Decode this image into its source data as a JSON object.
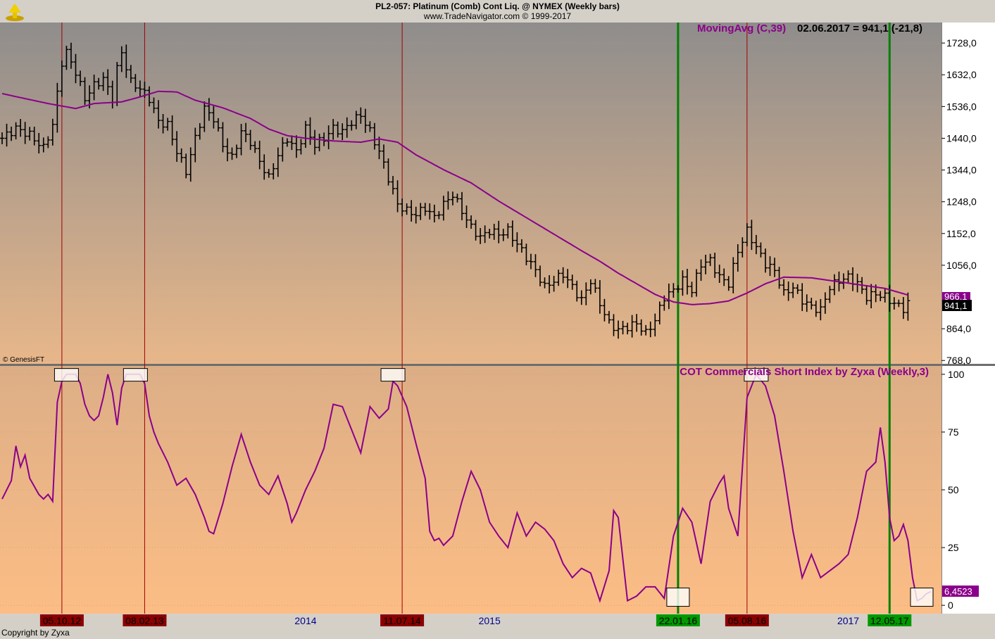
{
  "header": {
    "title": "PL2-057:  Platinum (Comb) Cont Liq. @ NYMEX  (Weekly bars)",
    "source": "www.TradeNavigator.com © 1999-2017"
  },
  "footer": {
    "copyright": "Copyright by Zyxa"
  },
  "watermark": "© GenesisFT",
  "colors": {
    "price_bar": "#000000",
    "moving_avg": "#8b008b",
    "cot_line": "#8b008b",
    "signal_red": "#a00000",
    "signal_green": "#008000"
  },
  "chart_data": [
    {
      "type": "ohlc",
      "panel": "price",
      "indicator_label": "MovingAvg (C,39)",
      "readout": "02.06.2017 = 941,1 (-21,8)",
      "y_ticks": [
        "1728,0",
        "1632,0",
        "1536,0",
        "1440,0",
        "1344,0",
        "1248,0",
        "1152,0",
        "1056,0",
        "864,0",
        "768,0"
      ],
      "y_tick_values": [
        1728,
        1632,
        1536,
        1440,
        1344,
        1248,
        1152,
        1056,
        864,
        768
      ],
      "ylim": [
        760,
        1790
      ],
      "last_price_label": "941,1",
      "ma_value_label": "966,1",
      "close_series": [
        [
          0,
          1440
        ],
        [
          3,
          1470
        ],
        [
          6,
          1450
        ],
        [
          9,
          1410
        ],
        [
          11,
          1480
        ],
        [
          13,
          1670
        ],
        [
          14,
          1700
        ],
        [
          16,
          1640
        ],
        [
          18,
          1560
        ],
        [
          20,
          1600
        ],
        [
          22,
          1620
        ],
        [
          24,
          1560
        ],
        [
          25,
          1650
        ],
        [
          26,
          1700
        ],
        [
          28,
          1610
        ],
        [
          30,
          1590
        ],
        [
          32,
          1560
        ],
        [
          34,
          1490
        ],
        [
          36,
          1480
        ],
        [
          38,
          1400
        ],
        [
          40,
          1340
        ],
        [
          42,
          1440
        ],
        [
          44,
          1530
        ],
        [
          46,
          1500
        ],
        [
          48,
          1420
        ],
        [
          50,
          1380
        ],
        [
          52,
          1460
        ],
        [
          54,
          1430
        ],
        [
          56,
          1370
        ],
        [
          58,
          1320
        ],
        [
          60,
          1390
        ],
        [
          62,
          1440
        ],
        [
          64,
          1400
        ],
        [
          66,
          1470
        ],
        [
          68,
          1420
        ],
        [
          70,
          1440
        ],
        [
          72,
          1470
        ],
        [
          74,
          1460
        ],
        [
          76,
          1490
        ],
        [
          78,
          1510
        ],
        [
          80,
          1460
        ],
        [
          82,
          1400
        ],
        [
          84,
          1320
        ],
        [
          86,
          1240
        ],
        [
          88,
          1220
        ],
        [
          90,
          1210
        ],
        [
          92,
          1230
        ],
        [
          94,
          1200
        ],
        [
          96,
          1240
        ],
        [
          98,
          1270
        ],
        [
          100,
          1220
        ],
        [
          102,
          1170
        ],
        [
          104,
          1140
        ],
        [
          106,
          1160
        ],
        [
          108,
          1150
        ],
        [
          110,
          1160
        ],
        [
          112,
          1120
        ],
        [
          114,
          1080
        ],
        [
          116,
          1040
        ],
        [
          118,
          990
        ],
        [
          120,
          1010
        ],
        [
          122,
          1030
        ],
        [
          124,
          990
        ],
        [
          126,
          950
        ],
        [
          128,
          1010
        ],
        [
          130,
          940
        ],
        [
          132,
          880
        ],
        [
          134,
          860
        ],
        [
          136,
          870
        ],
        [
          138,
          880
        ],
        [
          140,
          850
        ],
        [
          142,
          890
        ],
        [
          144,
          960
        ],
        [
          146,
          980
        ],
        [
          148,
          1010
        ],
        [
          150,
          980
        ],
        [
          152,
          1060
        ],
        [
          154,
          1070
        ],
        [
          156,
          1020
        ],
        [
          158,
          1000
        ],
        [
          160,
          1100
        ],
        [
          162,
          1160
        ],
        [
          164,
          1110
        ],
        [
          166,
          1060
        ],
        [
          168,
          1040
        ],
        [
          170,
          970
        ],
        [
          172,
          990
        ],
        [
          174,
          950
        ],
        [
          176,
          930
        ],
        [
          178,
          920
        ],
        [
          180,
          990
        ],
        [
          182,
          1010
        ],
        [
          184,
          1020
        ],
        [
          186,
          1000
        ],
        [
          188,
          960
        ],
        [
          190,
          970
        ],
        [
          192,
          960
        ],
        [
          194,
          940
        ],
        [
          196,
          925
        ],
        [
          197,
          941
        ]
      ],
      "moving_avg": [
        [
          0,
          1575
        ],
        [
          10,
          1545
        ],
        [
          16,
          1530
        ],
        [
          20,
          1545
        ],
        [
          26,
          1550
        ],
        [
          30,
          1565
        ],
        [
          34,
          1582
        ],
        [
          38,
          1580
        ],
        [
          42,
          1555
        ],
        [
          48,
          1532
        ],
        [
          54,
          1500
        ],
        [
          58,
          1468
        ],
        [
          62,
          1448
        ],
        [
          66,
          1440
        ],
        [
          72,
          1432
        ],
        [
          78,
          1428
        ],
        [
          82,
          1438
        ],
        [
          86,
          1428
        ],
        [
          90,
          1390
        ],
        [
          96,
          1345
        ],
        [
          102,
          1305
        ],
        [
          108,
          1250
        ],
        [
          114,
          1200
        ],
        [
          120,
          1150
        ],
        [
          126,
          1100
        ],
        [
          130,
          1068
        ],
        [
          134,
          1032
        ],
        [
          138,
          1000
        ],
        [
          142,
          968
        ],
        [
          146,
          945
        ],
        [
          150,
          937
        ],
        [
          154,
          940
        ],
        [
          158,
          948
        ],
        [
          162,
          972
        ],
        [
          166,
          1000
        ],
        [
          170,
          1020
        ],
        [
          176,
          1018
        ],
        [
          180,
          1010
        ],
        [
          184,
          1002
        ],
        [
          188,
          994
        ],
        [
          192,
          986
        ],
        [
          197,
          966
        ]
      ],
      "x_labels": [
        "05.10.12",
        "08.02.13",
        "2014",
        "11.07.14",
        "2015",
        "22.01.16",
        "05.08.16",
        "2017",
        "12.05.17"
      ],
      "x_label_weeks": [
        13,
        31,
        66,
        87,
        106,
        147,
        162,
        184,
        193
      ]
    },
    {
      "type": "line",
      "panel": "indicator",
      "title": "COT Commercials Short Index by Zyxa (Weekly,3)",
      "y_ticks": [
        "100",
        "75",
        "50",
        "25",
        "0"
      ],
      "y_tick_values": [
        100,
        75,
        50,
        25,
        0
      ],
      "ylim": [
        -3,
        103
      ],
      "last_value_label": "6,4523",
      "values": [
        [
          0,
          46
        ],
        [
          2,
          54
        ],
        [
          3,
          69
        ],
        [
          4,
          60
        ],
        [
          5,
          65
        ],
        [
          6,
          55
        ],
        [
          8,
          48
        ],
        [
          9,
          46
        ],
        [
          10,
          48
        ],
        [
          11,
          45
        ],
        [
          12,
          88
        ],
        [
          13,
          97
        ],
        [
          14,
          100
        ],
        [
          15,
          100
        ],
        [
          16,
          100
        ],
        [
          17,
          96
        ],
        [
          18,
          87
        ],
        [
          19,
          82
        ],
        [
          20,
          80
        ],
        [
          21,
          82
        ],
        [
          22,
          90
        ],
        [
          23,
          100
        ],
        [
          24,
          92
        ],
        [
          25,
          78
        ],
        [
          26,
          94
        ],
        [
          27,
          100
        ],
        [
          28,
          100
        ],
        [
          29,
          100
        ],
        [
          30,
          100
        ],
        [
          31,
          96
        ],
        [
          32,
          82
        ],
        [
          33,
          75
        ],
        [
          34,
          70
        ],
        [
          36,
          62
        ],
        [
          38,
          52
        ],
        [
          40,
          55
        ],
        [
          42,
          48
        ],
        [
          44,
          38
        ],
        [
          45,
          32
        ],
        [
          46,
          31
        ],
        [
          48,
          44
        ],
        [
          50,
          60
        ],
        [
          52,
          74
        ],
        [
          54,
          62
        ],
        [
          56,
          52
        ],
        [
          58,
          48
        ],
        [
          60,
          56
        ],
        [
          62,
          44
        ],
        [
          63,
          36
        ],
        [
          64,
          40
        ],
        [
          66,
          50
        ],
        [
          68,
          58
        ],
        [
          70,
          68
        ],
        [
          72,
          87
        ],
        [
          74,
          86
        ],
        [
          76,
          76
        ],
        [
          78,
          66
        ],
        [
          80,
          86
        ],
        [
          82,
          81
        ],
        [
          84,
          85
        ],
        [
          85,
          97
        ],
        [
          86,
          95
        ],
        [
          88,
          86
        ],
        [
          90,
          70
        ],
        [
          92,
          55
        ],
        [
          93,
          32
        ],
        [
          94,
          28
        ],
        [
          95,
          29
        ],
        [
          96,
          26
        ],
        [
          98,
          30
        ],
        [
          100,
          45
        ],
        [
          102,
          58
        ],
        [
          104,
          50
        ],
        [
          106,
          36
        ],
        [
          108,
          30
        ],
        [
          110,
          25
        ],
        [
          112,
          40
        ],
        [
          114,
          30
        ],
        [
          116,
          36
        ],
        [
          118,
          33
        ],
        [
          120,
          28
        ],
        [
          122,
          18
        ],
        [
          124,
          12
        ],
        [
          126,
          16
        ],
        [
          128,
          14
        ],
        [
          130,
          2
        ],
        [
          132,
          15
        ],
        [
          133,
          41
        ],
        [
          134,
          38
        ],
        [
          136,
          2
        ],
        [
          138,
          4
        ],
        [
          140,
          8
        ],
        [
          142,
          8
        ],
        [
          144,
          3
        ],
        [
          146,
          30
        ],
        [
          148,
          42
        ],
        [
          150,
          36
        ],
        [
          152,
          18
        ],
        [
          154,
          45
        ],
        [
          156,
          53
        ],
        [
          157,
          56
        ],
        [
          158,
          42
        ],
        [
          160,
          30
        ],
        [
          162,
          90
        ],
        [
          164,
          100
        ],
        [
          166,
          95
        ],
        [
          168,
          82
        ],
        [
          170,
          58
        ],
        [
          172,
          32
        ],
        [
          174,
          12
        ],
        [
          176,
          22
        ],
        [
          178,
          12
        ],
        [
          180,
          15
        ],
        [
          182,
          18
        ],
        [
          184,
          22
        ],
        [
          186,
          38
        ],
        [
          188,
          58
        ],
        [
          190,
          62
        ],
        [
          191,
          77
        ],
        [
          192,
          62
        ],
        [
          193,
          38
        ],
        [
          194,
          28
        ],
        [
          195,
          30
        ],
        [
          196,
          35
        ],
        [
          197,
          28
        ],
        [
          198,
          12
        ],
        [
          199,
          2
        ],
        [
          200,
          3
        ],
        [
          201,
          5
        ],
        [
          202,
          6
        ]
      ],
      "signal_boxes_high": [
        14,
        29,
        85,
        164
      ],
      "signal_boxes_low": [
        147,
        200
      ]
    }
  ],
  "signals": {
    "red_vertical_weeks": [
      13,
      31,
      87,
      162
    ],
    "green_vertical_weeks": [
      147,
      193
    ]
  }
}
